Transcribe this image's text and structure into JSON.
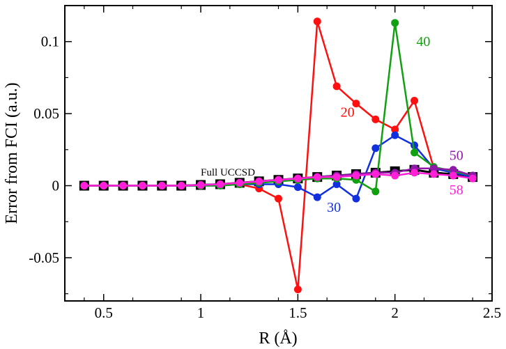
{
  "chart_data": {
    "type": "line",
    "title": "",
    "xlabel": "R (Å)",
    "ylabel": "Error from FCI (a.u.)",
    "xlim": [
      0.3,
      2.5
    ],
    "ylim": [
      -0.08,
      0.125
    ],
    "xticks": [
      0.5,
      1,
      1.5,
      2,
      2.5
    ],
    "xtick_labels": [
      "0.5",
      "1",
      "1.5",
      "2",
      "2.5"
    ],
    "yticks": [
      -0.05,
      0,
      0.05,
      0.1
    ],
    "ytick_labels": [
      "-0.05",
      "0",
      "0.05",
      "0.1"
    ],
    "grid": false,
    "x": [
      0.4,
      0.5,
      0.6,
      0.7,
      0.8,
      0.9,
      1.0,
      1.1,
      1.2,
      1.3,
      1.4,
      1.5,
      1.6,
      1.7,
      1.8,
      1.9,
      2.0,
      2.1,
      2.2,
      2.3,
      2.4
    ],
    "series": [
      {
        "name": "Full UCCSD",
        "color": "#000000",
        "marker": "square",
        "values": [
          0,
          0,
          0,
          0,
          0,
          0,
          0.0005,
          0.001,
          0.002,
          0.003,
          0.004,
          0.005,
          0.006,
          0.007,
          0.008,
          0.009,
          0.01,
          0.011,
          0.009,
          0.008,
          0.006
        ]
      },
      {
        "name": "20",
        "color": "#ff1010",
        "marker": "circle",
        "values": [
          0,
          0,
          0,
          0,
          0,
          0,
          0,
          0.0005,
          0.001,
          -0.002,
          -0.009,
          -0.072,
          0.114,
          0.069,
          0.057,
          0.046,
          0.039,
          0.059,
          0.012,
          0.009,
          0.006
        ]
      },
      {
        "name": "30",
        "color": "#1030e0",
        "marker": "circle",
        "values": [
          0,
          0,
          0,
          0,
          0,
          0,
          0,
          0,
          0.001,
          0.001,
          0.001,
          -0.001,
          -0.008,
          0.001,
          -0.009,
          0.026,
          0.035,
          0.028,
          0.012,
          0.009,
          0.006
        ]
      },
      {
        "name": "40",
        "color": "#10a010",
        "marker": "circle",
        "values": [
          0,
          0,
          0,
          0,
          0,
          0,
          0,
          0,
          0.001,
          0.002,
          0.003,
          0.004,
          0.005,
          0.005,
          0.004,
          -0.004,
          0.113,
          0.023,
          0.013,
          0.01,
          0.007
        ]
      },
      {
        "name": "50",
        "color": "#9018a8",
        "marker": "circle",
        "values": [
          0,
          0,
          0,
          0,
          0,
          0,
          0.0005,
          0.001,
          0.002,
          0.003,
          0.004,
          0.005,
          0.006,
          0.007,
          0.008,
          0.009,
          0.009,
          0.012,
          0.012,
          0.011,
          0.007
        ]
      },
      {
        "name": "58",
        "color": "#ff20d8",
        "marker": "circle",
        "values": [
          0,
          0,
          0,
          0,
          0,
          0,
          0.0005,
          0.001,
          0.002,
          0.003,
          0.004,
          0.005,
          0.006,
          0.006,
          0.007,
          0.008,
          0.007,
          0.009,
          0.008,
          0.007,
          0.005
        ]
      }
    ],
    "annotations": [
      {
        "text": "Full UCCSD",
        "x": 1.0,
        "y": 0.007,
        "color": "#000000"
      },
      {
        "text": "20",
        "x": 1.72,
        "y": 0.048,
        "color": "#ff1010"
      },
      {
        "text": "30",
        "x": 1.65,
        "y": -0.018,
        "color": "#1030e0"
      },
      {
        "text": "40",
        "x": 2.11,
        "y": 0.097,
        "color": "#10a010"
      },
      {
        "text": "50",
        "x": 2.28,
        "y": 0.018,
        "color": "#9018a8"
      },
      {
        "text": "58",
        "x": 2.28,
        "y": -0.006,
        "color": "#ff20d8"
      }
    ]
  }
}
